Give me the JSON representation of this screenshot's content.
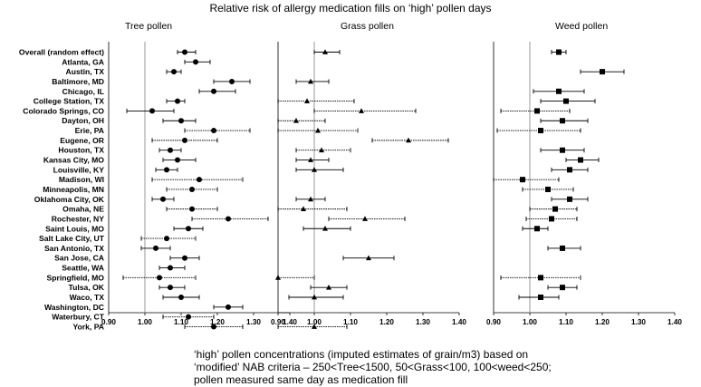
{
  "title": "Relative risk of allergy medication fills on ‘high’ pollen days",
  "footnote": [
    "‘high’ pollen concentrations (imputed estimates of grain/m3) based on",
    "‘modified’ NAB criteria – 250<Tree<1500, 50<Grass<100, 100<weed<250;",
    "pollen measured same day as medication fill"
  ],
  "chart_data": {
    "type": "forest",
    "categories": [
      "Overall (random effect)",
      "Atlanta, GA",
      "Austin, TX",
      "Baltimore, MD",
      "Chicago, IL",
      "College Station, TX",
      "Colorado Springs, CO",
      "Dayton, OH",
      "Erie, PA",
      "Eugene, OR",
      "Houston, TX",
      "Kansas City, MO",
      "Louisville, KY",
      "Madison, WI",
      "Minneapolis, MN",
      "Oklahoma City, OK",
      "Omaha, NE",
      "Rochester, NY",
      "Saint Louis, MO",
      "Salt Lake City, UT",
      "San Antonio, TX",
      "San Jose, CA",
      "Seattle, WA",
      "Springfield, MO",
      "Tulsa, OK",
      "Waco, TX",
      "Washington, DC",
      "Waterbury, CT",
      "York, PA"
    ],
    "xlim": [
      0.9,
      1.4
    ],
    "xticks": [
      "0.90",
      "1.00",
      "1.10",
      "1.20",
      "1.30",
      "1.40"
    ],
    "reference_line": 1.0,
    "panels": [
      {
        "name": "Tree pollen",
        "marker": "circle",
        "estimates": [
          [
            1.11,
            1.09,
            1.14,
            false
          ],
          [
            1.14,
            1.11,
            1.18,
            false
          ],
          [
            1.08,
            1.06,
            1.1,
            false
          ],
          [
            1.24,
            1.19,
            1.29,
            false
          ],
          [
            1.19,
            1.15,
            1.25,
            false
          ],
          [
            1.09,
            1.06,
            1.11,
            false
          ],
          [
            1.02,
            0.95,
            1.08,
            false
          ],
          [
            1.1,
            1.05,
            1.14,
            false
          ],
          [
            1.19,
            1.11,
            1.29,
            true
          ],
          [
            1.11,
            1.02,
            1.2,
            true
          ],
          [
            1.07,
            1.04,
            1.1,
            false
          ],
          [
            1.09,
            1.05,
            1.14,
            false
          ],
          [
            1.06,
            1.03,
            1.09,
            false
          ],
          [
            1.15,
            1.02,
            1.27,
            true
          ],
          [
            1.13,
            1.06,
            1.2,
            true
          ],
          [
            1.05,
            1.02,
            1.08,
            false
          ],
          [
            1.13,
            1.06,
            1.2,
            true
          ],
          [
            1.23,
            1.13,
            1.34,
            true
          ],
          [
            1.12,
            1.08,
            1.16,
            false
          ],
          [
            1.06,
            0.99,
            1.14,
            true
          ],
          [
            1.03,
            0.99,
            1.07,
            false
          ],
          [
            1.11,
            1.07,
            1.15,
            false
          ],
          [
            1.07,
            1.04,
            1.11,
            false
          ],
          [
            1.04,
            0.94,
            1.14,
            true
          ],
          [
            1.07,
            1.04,
            1.11,
            false
          ],
          [
            1.1,
            1.05,
            1.15,
            false
          ],
          [
            1.23,
            1.19,
            1.27,
            false
          ],
          [
            1.12,
            1.05,
            1.19,
            true
          ],
          [
            1.19,
            1.11,
            1.27,
            true
          ]
        ]
      },
      {
        "name": "Grass pollen",
        "marker": "triangle",
        "estimates": [
          [
            1.03,
            1.0,
            1.07,
            false
          ],
          null,
          null,
          [
            0.99,
            0.95,
            1.04,
            false
          ],
          null,
          [
            0.98,
            0.9,
            1.11,
            true
          ],
          [
            1.13,
            1.0,
            1.28,
            true
          ],
          [
            0.95,
            0.9,
            1.03,
            true
          ],
          [
            1.01,
            0.9,
            1.12,
            true
          ],
          [
            1.26,
            1.16,
            1.37,
            true
          ],
          [
            1.02,
            0.95,
            1.1,
            true
          ],
          [
            0.99,
            0.95,
            1.04,
            false
          ],
          [
            1.0,
            0.95,
            1.08,
            false
          ],
          null,
          null,
          [
            0.99,
            0.95,
            1.03,
            false
          ],
          [
            0.97,
            0.88,
            1.09,
            true
          ],
          [
            1.14,
            1.04,
            1.25,
            true
          ],
          [
            1.03,
            0.97,
            1.1,
            false
          ],
          null,
          null,
          [
            1.15,
            1.08,
            1.22,
            false
          ],
          null,
          [
            0.9,
            0.7,
            1.0,
            true
          ],
          [
            1.04,
            0.99,
            1.09,
            false
          ],
          [
            1.0,
            0.93,
            1.08,
            false
          ],
          null,
          null,
          [
            1.0,
            0.9,
            1.09,
            true
          ]
        ]
      },
      {
        "name": "Weed pollen",
        "marker": "square",
        "estimates": [
          [
            1.08,
            1.06,
            1.1,
            false
          ],
          null,
          [
            1.2,
            1.14,
            1.26,
            false
          ],
          null,
          [
            1.08,
            1.01,
            1.15,
            false
          ],
          [
            1.1,
            1.03,
            1.18,
            false
          ],
          [
            1.02,
            0.92,
            1.11,
            true
          ],
          [
            1.09,
            1.03,
            1.16,
            false
          ],
          [
            1.03,
            0.91,
            1.14,
            true
          ],
          null,
          [
            1.09,
            1.03,
            1.15,
            false
          ],
          [
            1.14,
            1.1,
            1.19,
            false
          ],
          [
            1.11,
            1.06,
            1.16,
            false
          ],
          [
            0.98,
            0.9,
            1.08,
            true
          ],
          [
            1.05,
            0.98,
            1.12,
            true
          ],
          [
            1.11,
            1.06,
            1.16,
            false
          ],
          [
            1.07,
            1.0,
            1.13,
            true
          ],
          [
            1.06,
            0.99,
            1.13,
            true
          ],
          [
            1.02,
            0.98,
            1.05,
            false
          ],
          null,
          [
            1.09,
            1.05,
            1.14,
            false
          ],
          null,
          null,
          [
            1.03,
            0.92,
            1.14,
            true
          ],
          [
            1.09,
            1.05,
            1.13,
            false
          ],
          [
            1.03,
            0.97,
            1.08,
            false
          ],
          null,
          null,
          null
        ]
      }
    ]
  }
}
